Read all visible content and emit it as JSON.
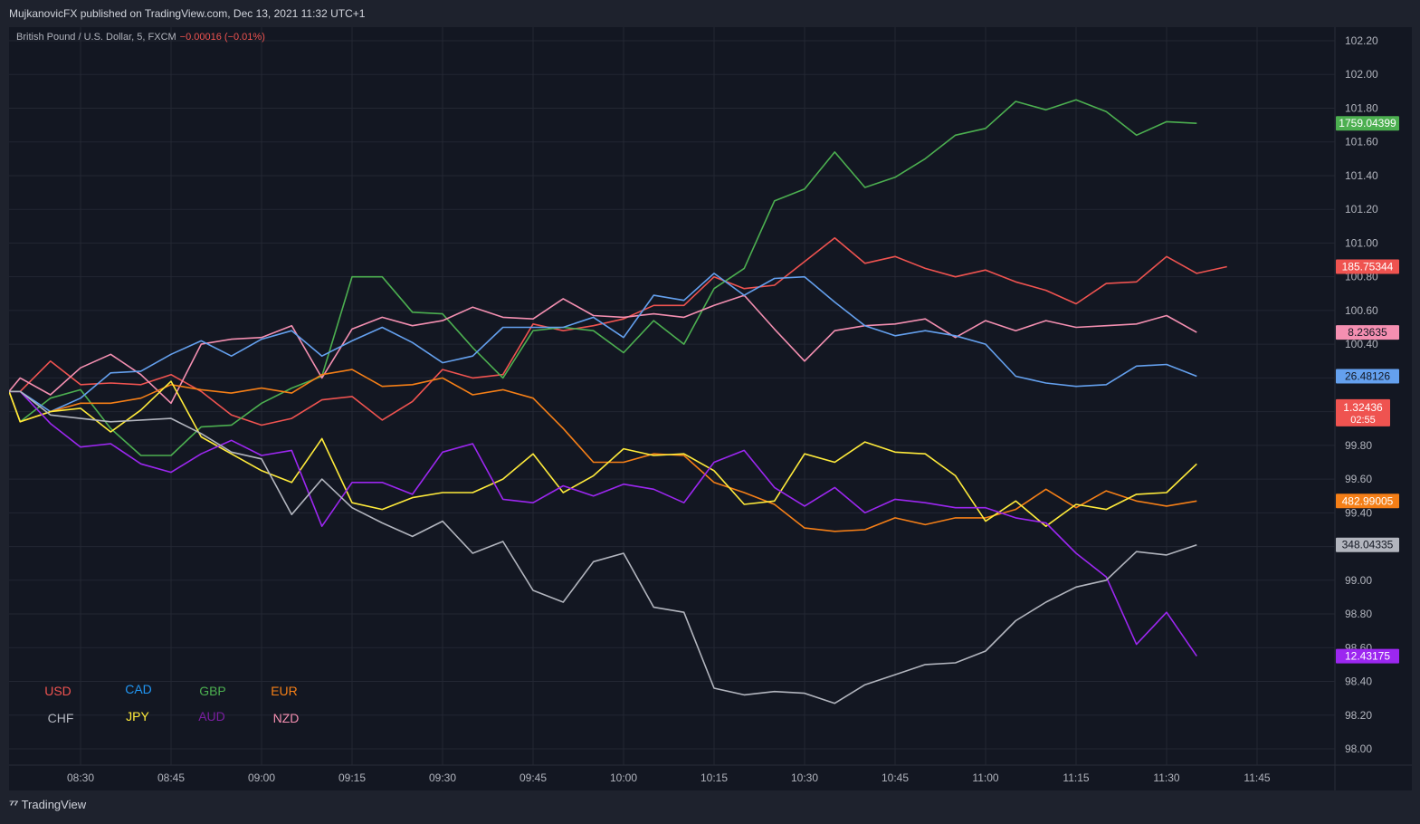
{
  "header": {
    "publisher_text": "MujkanovicFX published on TradingView.com, Dec 13, 2021 11:32 UTC+1"
  },
  "legend_top": {
    "symbol": "British Pound / U.S. Dollar, 5, FXCM",
    "change": "−0.00016 (−0.01%)"
  },
  "footer": {
    "brand": "TradingView"
  },
  "chart_data": {
    "type": "line",
    "ylim": [
      97.9,
      102.3
    ],
    "xlim": [
      -2,
      42
    ],
    "yticks": [
      "102.20",
      "102.00",
      "101.80",
      "101.60",
      "101.40",
      "101.20",
      "101.00",
      "100.80",
      "100.60",
      "100.40",
      "100.20",
      "100.00",
      "99.80",
      "99.60",
      "99.40",
      "99.20",
      "99.00",
      "98.80",
      "98.60",
      "98.40",
      "98.20",
      "98.00"
    ],
    "xticks": [
      {
        "i": 0,
        "label": "08:30"
      },
      {
        "i": 3,
        "label": "08:45"
      },
      {
        "i": 6,
        "label": "09:00"
      },
      {
        "i": 9,
        "label": "09:15"
      },
      {
        "i": 12,
        "label": "09:30"
      },
      {
        "i": 15,
        "label": "09:45"
      },
      {
        "i": 18,
        "label": "10:00"
      },
      {
        "i": 21,
        "label": "10:15"
      },
      {
        "i": 24,
        "label": "10:30"
      },
      {
        "i": 27,
        "label": "10:45"
      },
      {
        "i": 30,
        "label": "11:00"
      },
      {
        "i": 33,
        "label": "11:15"
      },
      {
        "i": 36,
        "label": "11:30"
      },
      {
        "i": 39,
        "label": "11:45"
      }
    ],
    "x_start": -2.4,
    "series": [
      {
        "name": "USD",
        "color": "#ef5350",
        "label": "185.75344",
        "values": [
          100.12,
          100.3,
          100.16,
          100.17,
          100.16,
          100.22,
          100.12,
          99.98,
          99.92,
          99.96,
          100.07,
          100.09,
          99.95,
          100.06,
          100.25,
          100.2,
          100.22,
          100.52,
          100.48,
          100.51,
          100.55,
          100.63,
          100.63,
          100.8,
          100.73,
          100.75,
          100.89,
          101.03,
          100.88,
          100.92,
          100.85,
          100.8,
          100.84,
          100.77,
          100.72,
          100.64,
          100.76,
          100.77,
          100.92,
          100.82,
          100.86
        ]
      },
      {
        "name": "GBP",
        "color": "#4caf50",
        "label": "1759.04399",
        "values": [
          99.94,
          100.08,
          100.13,
          99.9,
          99.74,
          99.74,
          99.91,
          99.92,
          100.05,
          100.14,
          100.21,
          100.8,
          100.8,
          100.59,
          100.58,
          100.38,
          100.2,
          100.48,
          100.5,
          100.48,
          100.35,
          100.54,
          100.4,
          100.73,
          100.85,
          101.25,
          101.32,
          101.54,
          101.33,
          101.39,
          101.5,
          101.64,
          101.68,
          101.84,
          101.79,
          101.85,
          101.78,
          101.64,
          101.72,
          101.71
        ]
      },
      {
        "name": "NZD",
        "color": "#f48fb1",
        "label": "8.23635",
        "values": [
          100.2,
          100.1,
          100.26,
          100.34,
          100.22,
          100.05,
          100.4,
          100.43,
          100.44,
          100.51,
          100.2,
          100.49,
          100.56,
          100.51,
          100.54,
          100.62,
          100.56,
          100.55,
          100.67,
          100.57,
          100.56,
          100.58,
          100.56,
          100.63,
          100.69,
          100.49,
          100.3,
          100.48,
          100.51,
          100.52,
          100.55,
          100.44,
          100.54,
          100.48,
          100.54,
          100.5,
          100.51,
          100.52,
          100.57,
          100.47
        ]
      },
      {
        "name": "CAD",
        "color": "#64a0ee",
        "label": "26.48126",
        "values": [
          100.12,
          100.0,
          100.08,
          100.23,
          100.24,
          100.34,
          100.42,
          100.33,
          100.43,
          100.48,
          100.33,
          100.42,
          100.5,
          100.41,
          100.29,
          100.33,
          100.5,
          100.5,
          100.5,
          100.56,
          100.44,
          100.69,
          100.66,
          100.82,
          100.69,
          100.79,
          100.8,
          100.65,
          100.51,
          100.45,
          100.48,
          100.45,
          100.4,
          100.21,
          100.17,
          100.15,
          100.16,
          100.27,
          100.28,
          100.21
        ]
      },
      {
        "name": "EUR",
        "color": "#f57f17",
        "label": "482.99005",
        "values": [
          99.94,
          100.0,
          100.05,
          100.05,
          100.08,
          100.16,
          100.13,
          100.11,
          100.14,
          100.11,
          100.22,
          100.25,
          100.15,
          100.16,
          100.2,
          100.1,
          100.13,
          100.08,
          99.9,
          99.7,
          99.7,
          99.75,
          99.74,
          99.58,
          99.52,
          99.45,
          99.31,
          99.29,
          99.3,
          99.37,
          99.33,
          99.37,
          99.37,
          99.42,
          99.54,
          99.43,
          99.53,
          99.47,
          99.44,
          99.47
        ]
      },
      {
        "name": "JPY",
        "color": "#ffeb3b",
        "label": "",
        "values": [
          99.94,
          100.0,
          100.02,
          99.88,
          100.01,
          100.18,
          99.85,
          99.75,
          99.65,
          99.58,
          99.84,
          99.46,
          99.42,
          99.49,
          99.52,
          99.52,
          99.6,
          99.75,
          99.52,
          99.62,
          99.78,
          99.74,
          99.75,
          99.65,
          99.45,
          99.47,
          99.75,
          99.7,
          99.82,
          99.76,
          99.75,
          99.62,
          99.35,
          99.47,
          99.32,
          99.45,
          99.42,
          99.51,
          99.52,
          99.69
        ]
      },
      {
        "name": "AUD",
        "color": "#9c27f0",
        "label": "12.43175",
        "values": [
          100.12,
          99.93,
          99.79,
          99.81,
          99.69,
          99.64,
          99.75,
          99.83,
          99.74,
          99.77,
          99.32,
          99.58,
          99.58,
          99.51,
          99.76,
          99.81,
          99.48,
          99.46,
          99.56,
          99.5,
          99.57,
          99.54,
          99.46,
          99.7,
          99.77,
          99.55,
          99.44,
          99.55,
          99.4,
          99.48,
          99.46,
          99.43,
          99.43,
          99.37,
          99.34,
          99.16,
          99.02,
          98.62,
          98.81,
          98.55
        ]
      },
      {
        "name": "CHF",
        "color": "#b2b5be",
        "label": "348.04335",
        "values": [
          100.12,
          99.98,
          99.96,
          99.94,
          99.95,
          99.96,
          99.87,
          99.76,
          99.72,
          99.39,
          99.6,
          99.43,
          99.34,
          99.26,
          99.35,
          99.16,
          99.23,
          98.94,
          98.87,
          99.11,
          99.16,
          98.84,
          98.81,
          98.36,
          98.32,
          98.34,
          98.33,
          98.27,
          98.38,
          98.44,
          98.5,
          98.51,
          98.58,
          98.76,
          98.87,
          98.96,
          99.0,
          99.17,
          99.15,
          99.21
        ]
      }
    ],
    "extra_labels": [
      {
        "text": "1.32436",
        "text2": "02:55",
        "color": "#ef5350",
        "y": 100.02
      }
    ],
    "legend": [
      {
        "name": "USD",
        "color": "#ef5350"
      },
      {
        "name": "CAD",
        "color": "#2196f3"
      },
      {
        "name": "GBP",
        "color": "#4caf50"
      },
      {
        "name": "EUR",
        "color": "#f57f17"
      },
      {
        "name": "CHF",
        "color": "#b2b5be"
      },
      {
        "name": "JPY",
        "color": "#ffeb3b"
      },
      {
        "name": "AUD",
        "color": "#7b1fa2"
      },
      {
        "name": "NZD",
        "color": "#f48fb1"
      }
    ]
  }
}
